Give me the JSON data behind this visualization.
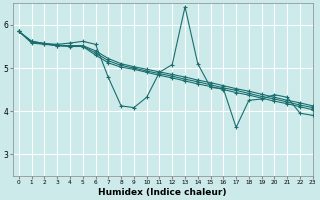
{
  "xlabel": "Humidex (Indice chaleur)",
  "bg_color": "#cceaea",
  "grid_color": "#ffffff",
  "line_color": "#1a6e6e",
  "xlim": [
    -0.5,
    23
  ],
  "ylim": [
    2.5,
    6.5
  ],
  "yticks": [
    3,
    4,
    5,
    6
  ],
  "xticks": [
    0,
    1,
    2,
    3,
    4,
    5,
    6,
    7,
    8,
    9,
    10,
    11,
    12,
    13,
    14,
    15,
    16,
    17,
    18,
    19,
    20,
    21,
    22,
    23
  ],
  "series": [
    [
      5.85,
      5.62,
      5.57,
      5.55,
      5.58,
      5.62,
      5.55,
      4.78,
      4.12,
      4.08,
      4.32,
      4.9,
      5.08,
      6.42,
      5.1,
      4.55,
      4.52,
      3.62,
      4.25,
      4.28,
      4.38,
      4.32,
      3.95,
      3.9
    ],
    [
      5.85,
      5.62,
      5.57,
      5.52,
      5.5,
      5.5,
      5.3,
      5.12,
      5.02,
      4.97,
      4.9,
      4.83,
      4.77,
      4.7,
      4.63,
      4.57,
      4.5,
      4.43,
      4.37,
      4.3,
      4.23,
      4.17,
      4.1,
      4.03
    ],
    [
      5.85,
      5.6,
      5.56,
      5.53,
      5.52,
      5.52,
      5.4,
      5.22,
      5.1,
      5.03,
      4.97,
      4.91,
      4.85,
      4.79,
      4.72,
      4.66,
      4.59,
      4.52,
      4.46,
      4.39,
      4.32,
      4.25,
      4.19,
      4.12
    ],
    [
      5.85,
      5.58,
      5.55,
      5.52,
      5.51,
      5.51,
      5.35,
      5.17,
      5.06,
      5.0,
      4.93,
      4.87,
      4.81,
      4.74,
      4.68,
      4.61,
      4.54,
      4.48,
      4.41,
      4.34,
      4.28,
      4.21,
      4.14,
      4.08
    ]
  ]
}
